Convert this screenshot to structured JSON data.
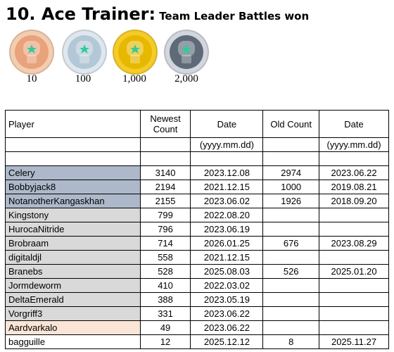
{
  "title": {
    "main": "10. Ace Trainer:",
    "sub": "Team Leader Battles won"
  },
  "medals": [
    {
      "label": "10",
      "icon": "bronze-medal-icon",
      "ring": "#f3cdb0",
      "inner": "#e8a27c"
    },
    {
      "label": "100",
      "icon": "silver-medal-icon",
      "ring": "#dfe7ee",
      "inner": "#b3c8d6"
    },
    {
      "label": "1,000",
      "icon": "gold-medal-icon",
      "ring": "#f5cb2a",
      "inner": "#e6b800"
    },
    {
      "label": "2,000",
      "icon": "platinum-medal-icon",
      "ring": "#d2d7dd",
      "inner": "#5e6a78"
    }
  ],
  "table": {
    "headers": [
      "Player",
      "Newest Count",
      "Date",
      "Old Count",
      "Date"
    ],
    "date_format": "(yyyy.mm.dd)",
    "rows": [
      {
        "player": "Celery",
        "newest": "3140",
        "date": "2023.12.08",
        "old": "2974",
        "old_date": "2023.06.22",
        "color": "#adb9ca"
      },
      {
        "player": "Bobbyjack8",
        "newest": "2194",
        "date": "2021.12.15",
        "old": "1000",
        "old_date": "2019.08.21",
        "color": "#adb9ca"
      },
      {
        "player": "NotanotherKangaskhan",
        "newest": "2155",
        "date": "2023.06.02",
        "old": "1926",
        "old_date": "2018.09.20",
        "color": "#adb9ca"
      },
      {
        "player": "Kingstony",
        "newest": "799",
        "date": "2022.08.20",
        "old": "",
        "old_date": "",
        "color": "#d9d9d9"
      },
      {
        "player": "HurocaNitride",
        "newest": "796",
        "date": "2023.06.19",
        "old": "",
        "old_date": "",
        "color": "#d9d9d9"
      },
      {
        "player": "Brobraam",
        "newest": "714",
        "date": "2026.01.25",
        "old": "676",
        "old_date": "2023.08.29",
        "color": "#d9d9d9"
      },
      {
        "player": "digitaldjl",
        "newest": "558",
        "date": "2021.12.15",
        "old": "",
        "old_date": "",
        "color": "#d9d9d9"
      },
      {
        "player": "Branebs",
        "newest": "528",
        "date": "2025.08.03",
        "old": "526",
        "old_date": "2025.01.20",
        "color": "#d9d9d9"
      },
      {
        "player": "Jormdeworm",
        "newest": "410",
        "date": "2022.03.02",
        "old": "",
        "old_date": "",
        "color": "#d9d9d9"
      },
      {
        "player": "DeltaEmerald",
        "newest": "388",
        "date": "2023.05.19",
        "old": "",
        "old_date": "",
        "color": "#d9d9d9"
      },
      {
        "player": "Vorgriff3",
        "newest": "331",
        "date": "2023.06.22",
        "old": "",
        "old_date": "",
        "color": "#d9d9d9"
      },
      {
        "player": "Aardvarkalo",
        "newest": "49",
        "date": "2023.06.22",
        "old": "",
        "old_date": "",
        "color": "#fbe5d6"
      },
      {
        "player": "bagguille",
        "newest": "12",
        "date": "2025.12.12",
        "old": "8",
        "old_date": "2025.11.27",
        "color": "#ffffff"
      }
    ]
  }
}
